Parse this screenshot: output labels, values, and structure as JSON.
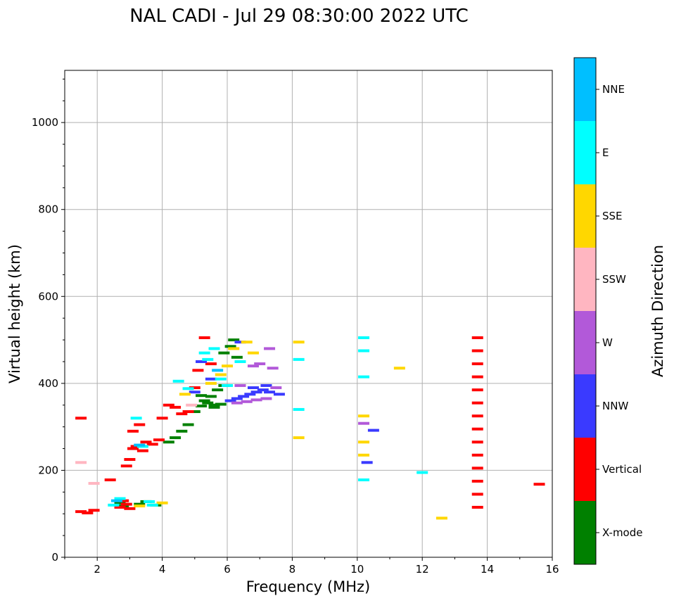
{
  "chart_data": {
    "type": "scatter",
    "title": "NAL CADI - Jul 29 08:30:00 2022 UTC",
    "xlabel": "Frequency (MHz)",
    "ylabel": "Virtual height (km)",
    "xlim": [
      1,
      16
    ],
    "ylim": [
      0,
      1120
    ],
    "xticks": [
      2,
      4,
      6,
      8,
      10,
      12,
      14,
      16
    ],
    "yticks": [
      0,
      200,
      400,
      600,
      800,
      1000
    ],
    "grid": true,
    "colorbar": {
      "label": "Azimuth Direction",
      "categories": [
        "X-mode",
        "Vertical",
        "NNW",
        "W",
        "SSW",
        "SSE",
        "E",
        "NNE"
      ],
      "colors": [
        "#008000",
        "#ff0000",
        "#3a3aff",
        "#b259d9",
        "#ffb6c1",
        "#ffd700",
        "#00ffff",
        "#00bfff"
      ]
    },
    "series": [
      {
        "name": "X-mode",
        "points": [
          [
            2.7,
            125
          ],
          [
            2.8,
            118
          ],
          [
            3.3,
            122
          ],
          [
            3.5,
            128
          ],
          [
            3.8,
            120
          ],
          [
            4.2,
            265
          ],
          [
            4.4,
            275
          ],
          [
            4.6,
            290
          ],
          [
            4.8,
            305
          ],
          [
            5.0,
            335
          ],
          [
            5.2,
            348
          ],
          [
            5.4,
            355
          ],
          [
            5.6,
            350
          ],
          [
            5.8,
            352
          ],
          [
            5.5,
            370
          ],
          [
            5.7,
            385
          ],
          [
            5.9,
            395
          ],
          [
            5.9,
            470
          ],
          [
            6.1,
            485
          ],
          [
            6.2,
            500
          ],
          [
            6.3,
            460
          ],
          [
            5.2,
            372
          ],
          [
            5.3,
            360
          ],
          [
            5.6,
            345
          ]
        ]
      },
      {
        "name": "Vertical",
        "points": [
          [
            1.5,
            320
          ],
          [
            1.5,
            105
          ],
          [
            1.7,
            102
          ],
          [
            1.9,
            108
          ],
          [
            2.4,
            178
          ],
          [
            2.7,
            115
          ],
          [
            2.8,
            130
          ],
          [
            2.9,
            122
          ],
          [
            3.0,
            112
          ],
          [
            2.9,
            210
          ],
          [
            3.0,
            225
          ],
          [
            3.1,
            250
          ],
          [
            3.2,
            255
          ],
          [
            3.4,
            245
          ],
          [
            3.5,
            265
          ],
          [
            3.7,
            260
          ],
          [
            3.9,
            270
          ],
          [
            4.0,
            320
          ],
          [
            4.2,
            350
          ],
          [
            4.4,
            345
          ],
          [
            4.6,
            330
          ],
          [
            4.8,
            335
          ],
          [
            5.0,
            390
          ],
          [
            5.1,
            430
          ],
          [
            5.3,
            505
          ],
          [
            5.5,
            445
          ],
          [
            3.1,
            290
          ],
          [
            3.3,
            305
          ],
          [
            13.7,
            505
          ],
          [
            13.7,
            475
          ],
          [
            13.7,
            445
          ],
          [
            13.7,
            415
          ],
          [
            13.7,
            385
          ],
          [
            13.7,
            355
          ],
          [
            13.7,
            325
          ],
          [
            13.7,
            295
          ],
          [
            13.7,
            265
          ],
          [
            13.7,
            235
          ],
          [
            13.7,
            205
          ],
          [
            13.7,
            175
          ],
          [
            13.7,
            145
          ],
          [
            13.7,
            115
          ],
          [
            15.6,
            168
          ]
        ]
      },
      {
        "name": "NNW",
        "points": [
          [
            5.2,
            450
          ],
          [
            5.5,
            410
          ],
          [
            6.1,
            360
          ],
          [
            6.3,
            365
          ],
          [
            6.5,
            370
          ],
          [
            6.7,
            375
          ],
          [
            6.9,
            380
          ],
          [
            7.1,
            385
          ],
          [
            7.3,
            380
          ],
          [
            7.6,
            375
          ],
          [
            6.8,
            390
          ],
          [
            7.2,
            395
          ],
          [
            10.3,
            218
          ],
          [
            10.5,
            292
          ],
          [
            5.0,
            380
          ],
          [
            6.4,
            495
          ]
        ]
      },
      {
        "name": "W",
        "points": [
          [
            6.3,
            355
          ],
          [
            6.6,
            358
          ],
          [
            6.9,
            362
          ],
          [
            7.2,
            365
          ],
          [
            7.5,
            390
          ],
          [
            6.8,
            440
          ],
          [
            7.0,
            445
          ],
          [
            7.3,
            480
          ],
          [
            7.4,
            435
          ],
          [
            6.4,
            395
          ],
          [
            10.2,
            308
          ]
        ]
      },
      {
        "name": "SSW",
        "points": [
          [
            1.5,
            218
          ],
          [
            1.9,
            170
          ],
          [
            4.9,
            350
          ]
        ]
      },
      {
        "name": "SSE",
        "points": [
          [
            3.3,
            118
          ],
          [
            4.0,
            125
          ],
          [
            4.7,
            375
          ],
          [
            5.5,
            400
          ],
          [
            5.8,
            420
          ],
          [
            6.2,
            480
          ],
          [
            6.6,
            495
          ],
          [
            6.8,
            470
          ],
          [
            8.2,
            275
          ],
          [
            8.2,
            495
          ],
          [
            10.2,
            325
          ],
          [
            10.2,
            265
          ],
          [
            10.2,
            235
          ],
          [
            11.3,
            435
          ],
          [
            12.6,
            90
          ],
          [
            6.0,
            440
          ]
        ]
      },
      {
        "name": "E",
        "points": [
          [
            2.5,
            120
          ],
          [
            2.7,
            135
          ],
          [
            3.2,
            320
          ],
          [
            3.6,
            128
          ],
          [
            3.7,
            120
          ],
          [
            4.5,
            405
          ],
          [
            4.8,
            388
          ],
          [
            5.3,
            470
          ],
          [
            5.4,
            455
          ],
          [
            5.6,
            480
          ],
          [
            5.8,
            410
          ],
          [
            6.0,
            395
          ],
          [
            6.4,
            450
          ],
          [
            8.2,
            455
          ],
          [
            8.2,
            340
          ],
          [
            10.2,
            505
          ],
          [
            10.2,
            475
          ],
          [
            10.2,
            415
          ],
          [
            10.2,
            178
          ],
          [
            12.0,
            195
          ],
          [
            3.4,
            255
          ]
        ]
      },
      {
        "name": "NNE",
        "points": [
          [
            2.6,
            130
          ],
          [
            3.3,
            258
          ],
          [
            5.7,
            430
          ]
        ]
      }
    ]
  }
}
